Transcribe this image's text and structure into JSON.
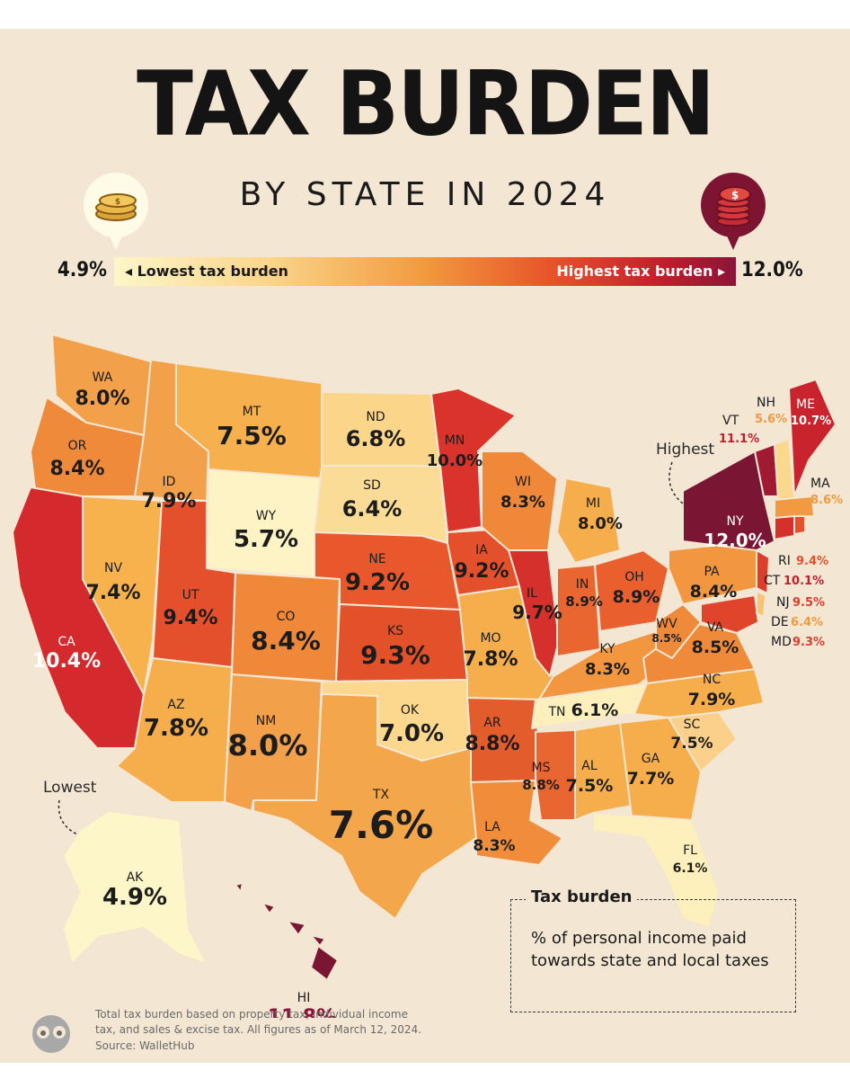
{
  "header": {
    "title": "TAX BURDEN",
    "subtitle": "BY STATE IN 2024"
  },
  "legend": {
    "low_value": "4.9%",
    "low_label": "◂ Lowest tax burden",
    "high_label": "Highest tax burden ▸",
    "high_value": "12.0%",
    "colors": [
      "#fdf6c8",
      "#fbd58a",
      "#f29a3d",
      "#e8542a",
      "#c41d2c",
      "#8a1538"
    ]
  },
  "annotations": {
    "highest": "Highest",
    "lowest": "Lowest"
  },
  "states": {
    "WA": {
      "abbr": "WA",
      "value": "8.0%"
    },
    "OR": {
      "abbr": "OR",
      "value": "8.4%"
    },
    "CA": {
      "abbr": "CA",
      "value": "10.4%"
    },
    "ID": {
      "abbr": "ID",
      "value": "7.9%"
    },
    "NV": {
      "abbr": "NV",
      "value": "7.4%"
    },
    "MT": {
      "abbr": "MT",
      "value": "7.5%"
    },
    "WY": {
      "abbr": "WY",
      "value": "5.7%"
    },
    "UT": {
      "abbr": "UT",
      "value": "9.4%"
    },
    "AZ": {
      "abbr": "AZ",
      "value": "7.8%"
    },
    "CO": {
      "abbr": "CO",
      "value": "8.4%"
    },
    "NM": {
      "abbr": "NM",
      "value": "8.0%"
    },
    "ND": {
      "abbr": "ND",
      "value": "6.8%"
    },
    "SD": {
      "abbr": "SD",
      "value": "6.4%"
    },
    "NE": {
      "abbr": "NE",
      "value": "9.2%"
    },
    "KS": {
      "abbr": "KS",
      "value": "9.3%"
    },
    "OK": {
      "abbr": "OK",
      "value": "7.0%"
    },
    "TX": {
      "abbr": "TX",
      "value": "7.6%"
    },
    "MN": {
      "abbr": "MN",
      "value": "10.0%"
    },
    "IA": {
      "abbr": "IA",
      "value": "9.2%"
    },
    "MO": {
      "abbr": "MO",
      "value": "7.8%"
    },
    "AR": {
      "abbr": "AR",
      "value": "8.8%"
    },
    "LA": {
      "abbr": "LA",
      "value": "8.3%"
    },
    "WI": {
      "abbr": "WI",
      "value": "8.3%"
    },
    "IL": {
      "abbr": "IL",
      "value": "9.7%"
    },
    "MI": {
      "abbr": "MI",
      "value": "8.0%"
    },
    "IN": {
      "abbr": "IN",
      "value": "8.9%"
    },
    "OH": {
      "abbr": "OH",
      "value": "8.9%"
    },
    "KY": {
      "abbr": "KY",
      "value": "8.3%"
    },
    "TN": {
      "abbr": "TN",
      "value": "6.1%"
    },
    "MS": {
      "abbr": "MS",
      "value": "8.8%"
    },
    "AL": {
      "abbr": "AL",
      "value": "7.5%"
    },
    "GA": {
      "abbr": "GA",
      "value": "7.7%"
    },
    "FL": {
      "abbr": "FL",
      "value": "6.1%"
    },
    "SC": {
      "abbr": "SC",
      "value": "7.5%"
    },
    "NC": {
      "abbr": "NC",
      "value": "7.9%"
    },
    "VA": {
      "abbr": "VA",
      "value": "8.5%"
    },
    "WV": {
      "abbr": "WV",
      "value": "8.5%"
    },
    "PA": {
      "abbr": "PA",
      "value": "8.4%"
    },
    "NY": {
      "abbr": "NY",
      "value": "12.0%"
    },
    "VT": {
      "abbr": "VT",
      "value": "11.1%"
    },
    "NH": {
      "abbr": "NH",
      "value": "5.6%"
    },
    "ME": {
      "abbr": "ME",
      "value": "10.7%"
    },
    "MA": {
      "abbr": "MA",
      "value": "8.6%"
    },
    "RI": {
      "abbr": "RI",
      "value": "9.4%"
    },
    "CT": {
      "abbr": "CT",
      "value": "10.1%"
    },
    "NJ": {
      "abbr": "NJ",
      "value": "9.5%"
    },
    "DE": {
      "abbr": "DE",
      "value": "6.4%"
    },
    "MD": {
      "abbr": "MD",
      "value": "9.3%"
    },
    "AK": {
      "abbr": "AK",
      "value": "4.9%"
    },
    "HI": {
      "abbr": "HI",
      "value": "11.8%"
    }
  },
  "note": {
    "title": "Tax burden",
    "line1": "% of personal income paid",
    "line2": "towards state and local taxes"
  },
  "footnote": {
    "line1": "Total tax burden based on property tax, individual income",
    "line2": "tax, and sales & excise tax. All figures as of March 12, 2024.",
    "line3": "Source: WalletHub"
  }
}
